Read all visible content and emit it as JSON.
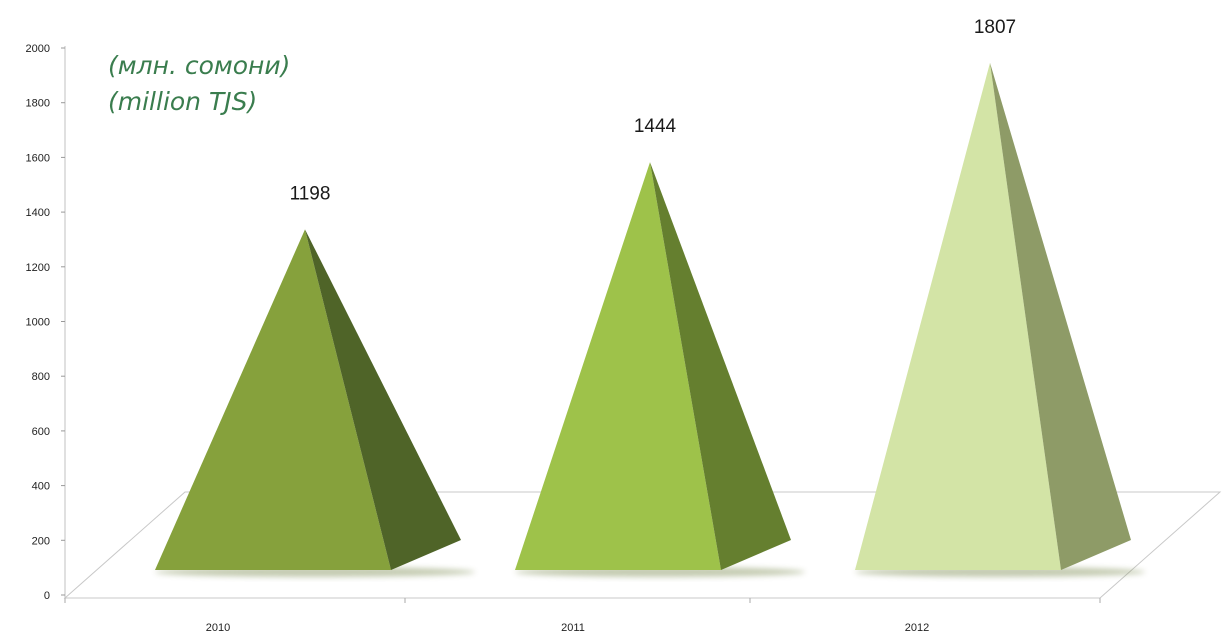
{
  "chart_data": {
    "type": "bar",
    "shape": "pyramid",
    "categories": [
      "2010",
      "2011",
      "2012"
    ],
    "values": [
      1198,
      1444,
      1807
    ],
    "data_labels": [
      "1198",
      "1444",
      "1807"
    ],
    "unit_labels": [
      "(млн. сомони)",
      "(million TJS)"
    ],
    "ylim": [
      0,
      2000
    ],
    "yticks": [
      0,
      200,
      400,
      600,
      800,
      1000,
      1200,
      1400,
      1600,
      1800,
      2000
    ],
    "grid": false,
    "legend": "none",
    "colors": {
      "bar_front": [
        "#86a13c",
        "#9ec24a",
        "#d3e4a6"
      ],
      "bar_side": [
        "#4f6428",
        "#657f2f",
        "#8e9b67"
      ],
      "shadow": "#7a8a50",
      "floor_line": "#c8c8c8",
      "unit_text": "#3a7d4e"
    }
  }
}
